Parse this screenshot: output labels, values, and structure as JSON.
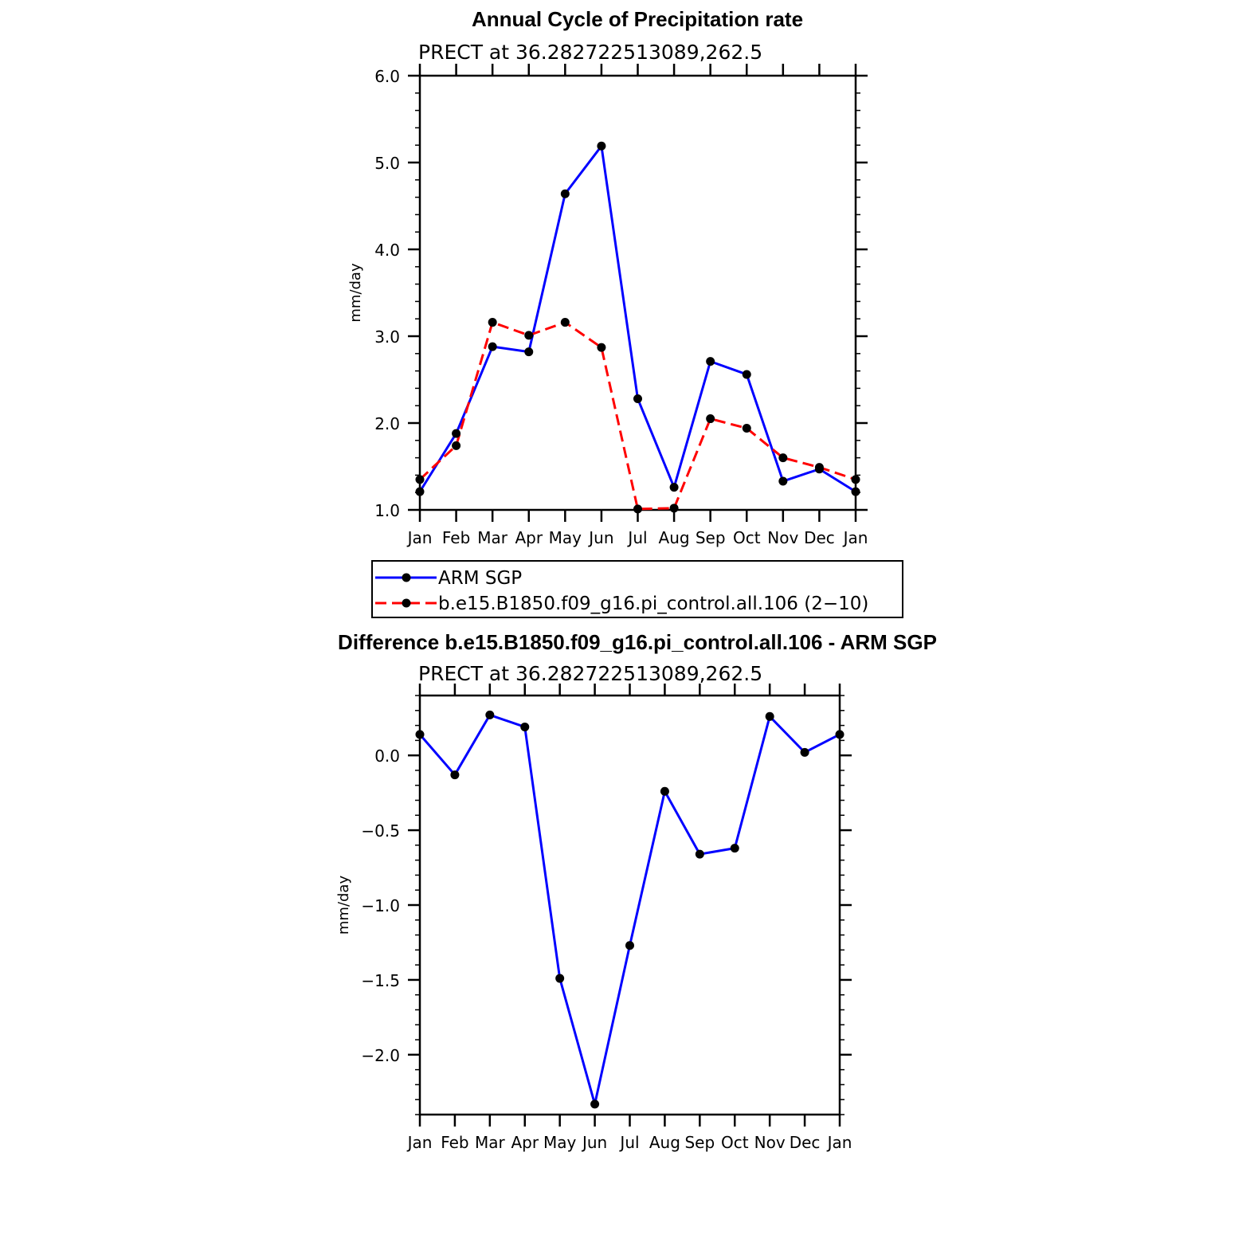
{
  "chart_data": [
    {
      "type": "line",
      "title": "Annual Cycle of Precipitation rate",
      "subtitle": "PRECT  at  36.282722513089,262.5",
      "ylabel": "mm/day",
      "xlabel": "",
      "categories": [
        "Jan",
        "Feb",
        "Mar",
        "Apr",
        "May",
        "Jun",
        "Jul",
        "Aug",
        "Sep",
        "Oct",
        "Nov",
        "Dec",
        "Jan"
      ],
      "ylim": [
        1.0,
        6.0
      ],
      "yticks": [
        1.0,
        2.0,
        3.0,
        4.0,
        5.0,
        6.0
      ],
      "ytick_labels": [
        "1.0",
        "2.0",
        "3.0",
        "4.0",
        "5.0",
        "6.0"
      ],
      "series": [
        {
          "name": "ARM SGP",
          "color": "#0000ff",
          "dash": false,
          "values": [
            1.21,
            1.88,
            2.88,
            2.82,
            4.64,
            5.19,
            2.28,
            1.26,
            2.71,
            2.56,
            1.33,
            1.47,
            1.21
          ]
        },
        {
          "name": "b.e15.B1850.f09_g16.pi_control.all.106 (2−10)",
          "color": "#ff0000",
          "dash": true,
          "values": [
            1.35,
            1.74,
            3.16,
            3.01,
            3.16,
            2.87,
            1.01,
            1.02,
            2.05,
            1.94,
            1.6,
            1.49,
            1.35
          ]
        }
      ],
      "legend": "below"
    },
    {
      "type": "line",
      "title": "Difference b.e15.B1850.f09_g16.pi_control.all.106 - ARM SGP",
      "subtitle": "PRECT  at  36.282722513089,262.5",
      "ylabel": "mm/day",
      "xlabel": "",
      "categories": [
        "Jan",
        "Feb",
        "Mar",
        "Apr",
        "May",
        "Jun",
        "Jul",
        "Aug",
        "Sep",
        "Oct",
        "Nov",
        "Dec",
        "Jan"
      ],
      "ylim": [
        -2.4,
        0.4
      ],
      "yticks": [
        -2.0,
        -1.5,
        -1.0,
        -0.5,
        0.0
      ],
      "ytick_labels": [
        "−2.0",
        "−1.5",
        "−1.0",
        "−0.5",
        "0.0"
      ],
      "series": [
        {
          "name": "Difference",
          "color": "#0000ff",
          "dash": false,
          "values": [
            0.14,
            -0.13,
            0.27,
            0.19,
            -1.49,
            -2.33,
            -1.27,
            -0.24,
            -0.66,
            -0.62,
            0.26,
            0.02,
            0.14
          ]
        }
      ]
    }
  ]
}
